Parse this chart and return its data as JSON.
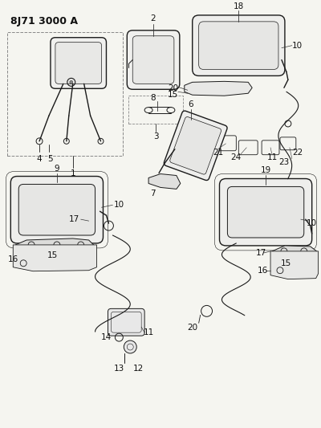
{
  "title": "8J71 3000 A",
  "bg": "#f5f5f0",
  "lc": "#1a1a1a",
  "fig_w": 4.0,
  "fig_h": 5.33,
  "dpi": 100
}
